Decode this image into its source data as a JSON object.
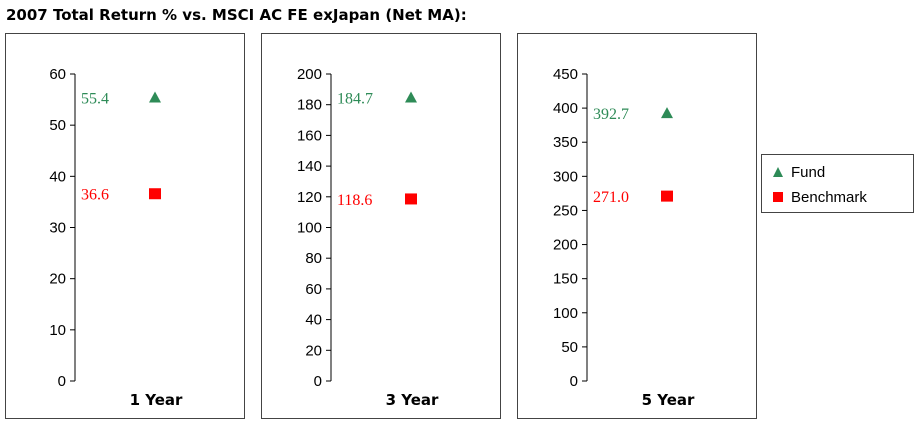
{
  "title": "2007 Total Return % vs. MSCI AC FE exJapan (Net MA):",
  "colors": {
    "fund": "#2e8b57",
    "benchmark": "#ff0000",
    "axis": "#000000"
  },
  "legend": [
    {
      "name": "Fund",
      "symbol": "triangle",
      "color": "#2e8b57"
    },
    {
      "name": "Benchmark",
      "symbol": "square",
      "color": "#ff0000"
    }
  ],
  "chart_data": [
    {
      "type": "scatter",
      "category": "1 Year",
      "ylim": [
        0,
        60
      ],
      "yticks": [
        "0",
        "10",
        "20",
        "30",
        "40",
        "50",
        "60"
      ],
      "series": [
        {
          "name": "Fund",
          "value": 55.4,
          "label": "55.4"
        },
        {
          "name": "Benchmark",
          "value": 36.6,
          "label": "36.6"
        }
      ]
    },
    {
      "type": "scatter",
      "category": "3 Year",
      "ylim": [
        0,
        200
      ],
      "yticks": [
        "0",
        "20",
        "40",
        "60",
        "80",
        "100",
        "120",
        "140",
        "160",
        "180",
        "200"
      ],
      "series": [
        {
          "name": "Fund",
          "value": 184.7,
          "label": "184.7"
        },
        {
          "name": "Benchmark",
          "value": 118.6,
          "label": "118.6"
        }
      ]
    },
    {
      "type": "scatter",
      "category": "5 Year",
      "ylim": [
        0,
        450
      ],
      "yticks": [
        "0",
        "50",
        "100",
        "150",
        "200",
        "250",
        "300",
        "350",
        "400",
        "450"
      ],
      "series": [
        {
          "name": "Fund",
          "value": 392.7,
          "label": "392.7"
        },
        {
          "name": "Benchmark",
          "value": 271.0,
          "label": "271.0"
        }
      ]
    }
  ]
}
